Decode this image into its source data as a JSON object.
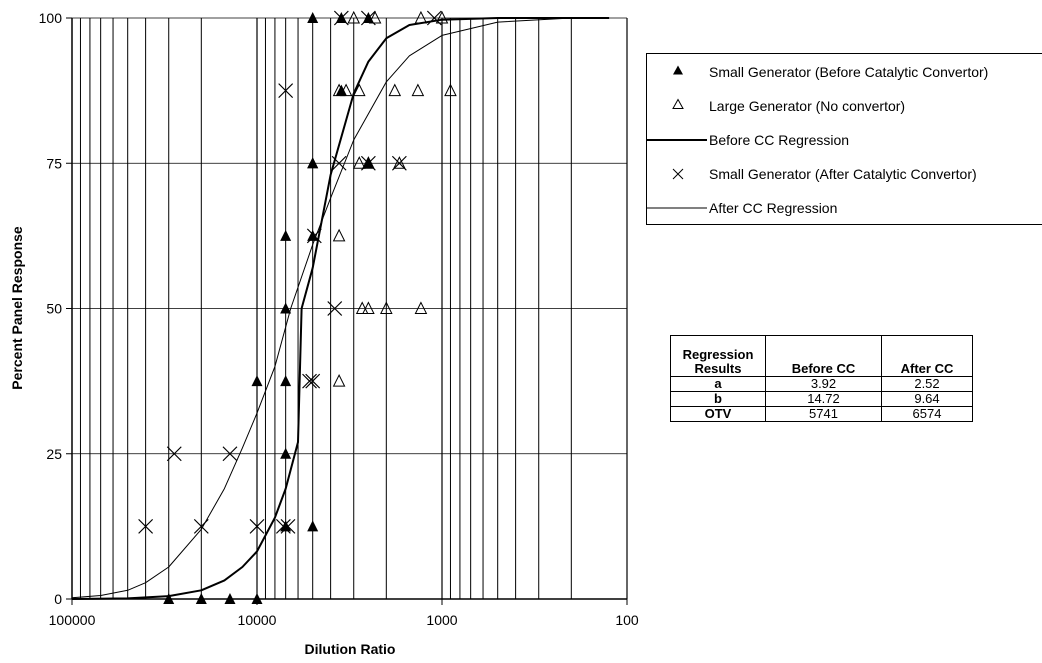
{
  "chart_data": {
    "type": "scatter",
    "title": "",
    "xlabel": "Dilution Ratio",
    "ylabel": "Percent Panel Response",
    "x_scale": "log",
    "x_reversed": true,
    "xlim": [
      100000,
      100
    ],
    "ylim": [
      0,
      100
    ],
    "x_ticks": [
      "100000",
      "10000",
      "1000",
      "100"
    ],
    "y_ticks": [
      "0",
      "25",
      "50",
      "75",
      "100"
    ],
    "grid": true,
    "legend_position": "right",
    "series": [
      {
        "name": "Small Generator (Before Catalytic Convertor)",
        "marker": "filled-triangle",
        "x": [
          30000,
          20000,
          14000,
          10000,
          10000,
          7000,
          7000,
          7000,
          7000,
          7000,
          5000,
          5000,
          5000,
          5000,
          5000,
          3500,
          3500,
          2500,
          2500
        ],
        "y": [
          0,
          0,
          0,
          0,
          37.5,
          25,
          37.5,
          50,
          62.5,
          12.5,
          62.5,
          75,
          100,
          12.5,
          75,
          87.5,
          100,
          75,
          100
        ]
      },
      {
        "name": "Large Generator (No convertor)",
        "marker": "open-triangle",
        "x": [
          2500,
          2000,
          2500,
          3600,
          3600,
          2700,
          3600,
          3300,
          3000,
          2300,
          2800,
          2800,
          1800,
          1700,
          1300,
          1350,
          900,
          1000,
          1300
        ],
        "y": [
          50,
          50,
          75,
          37.5,
          62.5,
          50,
          87.5,
          87.5,
          100,
          100,
          75,
          87.5,
          87.5,
          75,
          100,
          87.5,
          87.5,
          100,
          50
        ]
      },
      {
        "name": "Small Generator (After Catalytic Convertor)",
        "marker": "x",
        "x": [
          40000,
          28000,
          20000,
          14000,
          10000,
          7200,
          7000,
          5200,
          5000,
          4900,
          3800,
          3600,
          3500,
          2500,
          2500,
          1700,
          1100,
          6800
        ],
        "y": [
          12.5,
          25,
          12.5,
          25,
          12.5,
          12.5,
          87.5,
          37.5,
          37.5,
          62.5,
          50,
          75,
          100,
          75,
          100,
          75,
          100,
          12.5
        ]
      },
      {
        "name": "Before CC Regression",
        "line": "thick",
        "x": [
          100000,
          50000,
          30000,
          20000,
          15000,
          12000,
          10000,
          8000,
          7000,
          6000,
          5741,
          5000,
          4000,
          3000,
          2500,
          2000,
          1500,
          1000,
          500,
          200,
          125
        ],
        "y": [
          0.0,
          0.1,
          0.5,
          1.5,
          3.2,
          5.5,
          8.2,
          14.0,
          19.0,
          27.0,
          50.0,
          57.0,
          73.0,
          87.0,
          92.5,
          96.5,
          98.8,
          99.7,
          100,
          100,
          100
        ]
      },
      {
        "name": "After CC Regression",
        "line": "thin",
        "x": [
          100000,
          70000,
          50000,
          40000,
          30000,
          20000,
          15000,
          12000,
          10000,
          8000,
          6574,
          5000,
          4000,
          3000,
          2000,
          1500,
          1000,
          500,
          200,
          125
        ],
        "y": [
          0.2,
          0.6,
          1.5,
          2.8,
          5.5,
          12.0,
          19.0,
          26.0,
          32.0,
          40.0,
          50.0,
          61.0,
          69.0,
          79.0,
          89.0,
          93.5,
          97.0,
          99.3,
          100,
          100
        ]
      }
    ]
  },
  "regression_table": {
    "headers": [
      "Regression Results",
      "Before CC",
      "After CC"
    ],
    "rows": [
      {
        "label": "a",
        "before": "3.92",
        "after": "2.52"
      },
      {
        "label": "b",
        "before": "14.72",
        "after": "9.64"
      },
      {
        "label": "OTV",
        "before": "5741",
        "after": "6574"
      }
    ]
  }
}
